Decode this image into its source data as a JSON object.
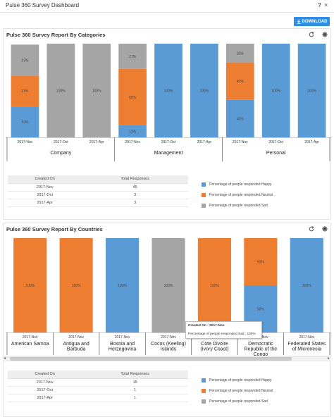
{
  "window": {
    "title": "Pulse 360 Survey Dashboard",
    "help": "?",
    "close": "×"
  },
  "toolbar": {
    "download_label": "DOWNLOAD",
    "download_icon": "download-icon"
  },
  "colors": {
    "happy": "#5b9bd5",
    "neutral": "#ed7d31",
    "sad": "#a5a5a5",
    "accent": "#2e8ee5"
  },
  "panel1": {
    "title": "Pulse 360 Survey Report By Categories",
    "refresh_icon": "refresh-icon",
    "settings_icon": "gear-icon",
    "table": {
      "headers": [
        "Created On",
        "Total Responses"
      ],
      "rows": [
        [
          "2017-Nov",
          "45"
        ],
        [
          "2017-Oct",
          "3"
        ],
        [
          "2017-Apr",
          "3"
        ]
      ]
    },
    "legend": [
      "Percentage of people responded Happy",
      "Percentage of people responded Neutral",
      "Percentage of people responded Sad"
    ]
  },
  "panel2": {
    "title": "Pulse 360 Survey Report By Countries",
    "refresh_icon": "refresh-icon",
    "settings_icon": "gear-icon",
    "tooltip": {
      "line1": "Created On : 2017-Nov",
      "line2": "Percentage of people responded Sad : 100%"
    },
    "table": {
      "headers": [
        "Created On",
        "Total Responses"
      ],
      "rows": [
        [
          "2017-Nov",
          "15"
        ],
        [
          "2017-Oct",
          "1"
        ],
        [
          "2017-Apr",
          "1"
        ]
      ]
    },
    "legend": [
      "Percentage of people responded Happy",
      "Percentage of people responded Neutral",
      "Percentage of people responded Sad"
    ]
  },
  "chart_data": [
    {
      "type": "bar",
      "stacked": true,
      "groups": [
        {
          "name": "Company",
          "categories": [
            "2017-Nov",
            "2017-Oct",
            "2017-Apr"
          ]
        },
        {
          "name": "Management",
          "categories": [
            "2017-Nov",
            "2017-Oct",
            "2017-Apr"
          ]
        },
        {
          "name": "Personal",
          "categories": [
            "2017-Nov",
            "2017-Oct",
            "2017-Apr"
          ]
        }
      ],
      "series": [
        {
          "name": "Percentage of people responded Happy",
          "values": [
            33,
            0,
            0,
            13,
            100,
            100,
            40,
            100,
            100
          ]
        },
        {
          "name": "Percentage of people responded Neutral",
          "values": [
            33,
            0,
            0,
            60,
            0,
            0,
            40,
            0,
            0
          ]
        },
        {
          "name": "Percentage of people responded Sad",
          "values": [
            33,
            100,
            100,
            27,
            0,
            0,
            20,
            0,
            0
          ]
        }
      ],
      "data_labels": [
        [
          "33%",
          "33%",
          "33%"
        ],
        [
          "100%"
        ],
        [
          "100%"
        ],
        [
          "13%",
          "60%",
          "27%"
        ],
        [
          "100%"
        ],
        [
          "100%"
        ],
        [
          "40%",
          "40%",
          "20%"
        ],
        [
          "100%"
        ],
        [
          "100%"
        ]
      ],
      "ylim": [
        0,
        100
      ]
    },
    {
      "type": "bar",
      "stacked": true,
      "groups": [
        {
          "name": "American Samoa",
          "categories": [
            "2017-Nov"
          ]
        },
        {
          "name": "Antigua and Barbuda",
          "categories": [
            "2017-Nov"
          ]
        },
        {
          "name": "Bosnia and Herzegovina",
          "categories": [
            "2017-Nov"
          ]
        },
        {
          "name": "Cocos (Keeling) Islands",
          "categories": [
            "2017-Nov"
          ]
        },
        {
          "name": "Cote Divoire (Ivory Coast)",
          "categories": [
            "2017-Nov"
          ]
        },
        {
          "name": "Democratic Republic of the Congo",
          "categories": [
            "2017-Nov"
          ]
        },
        {
          "name": "Federated States of Micronesia",
          "categories": [
            "2017-Nov"
          ]
        }
      ],
      "series": [
        {
          "name": "Percentage of people responded Happy",
          "values": [
            0,
            0,
            100,
            0,
            0,
            50,
            100
          ]
        },
        {
          "name": "Percentage of people responded Neutral",
          "values": [
            100,
            100,
            0,
            0,
            100,
            50,
            0
          ]
        },
        {
          "name": "Percentage of people responded Sad",
          "values": [
            0,
            0,
            0,
            100,
            0,
            0,
            0
          ]
        }
      ],
      "data_labels": [
        [
          "100%"
        ],
        [
          "100%"
        ],
        [
          "100%"
        ],
        [
          "100%"
        ],
        [
          "100%"
        ],
        [
          "50%",
          "50%"
        ],
        [
          "100%"
        ]
      ],
      "ylim": [
        0,
        100
      ]
    }
  ]
}
